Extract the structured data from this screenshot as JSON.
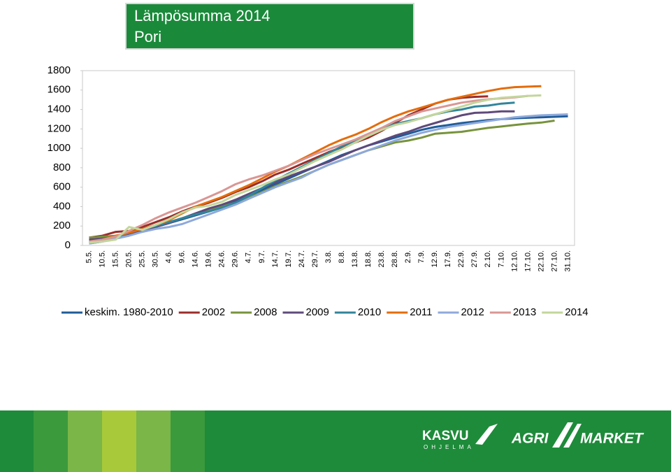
{
  "chart_data": {
    "type": "line",
    "title": "Lämpösumma 2014",
    "subtitle": "Pori",
    "categories": [
      "5.5.",
      "10.5.",
      "15.5.",
      "20.5.",
      "25.5.",
      "30.5.",
      "4.6.",
      "9.6.",
      "14.6.",
      "19.6.",
      "24.6.",
      "29.6.",
      "4.7.",
      "9.7.",
      "14.7.",
      "19.7.",
      "24.7.",
      "29.7.",
      "3.8.",
      "8.8.",
      "13.8.",
      "18.8.",
      "23.8.",
      "28.8.",
      "2.9.",
      "7.9.",
      "12.9.",
      "17.9.",
      "22.9.",
      "27.9.",
      "2.10.",
      "7.10.",
      "12.10.",
      "17.10.",
      "22.10.",
      "27.10.",
      "31.10."
    ],
    "ylim": [
      0,
      1800
    ],
    "yticks": [
      0,
      200,
      400,
      600,
      800,
      1000,
      1200,
      1400,
      1600,
      1800
    ],
    "grid": false,
    "legend": "bottom",
    "series": [
      {
        "name": "keskim. 1980-2010",
        "color": "#1f5c99",
        "values": [
          50,
          60,
          80,
          110,
          150,
          190,
          230,
          270,
          310,
          350,
          400,
          450,
          510,
          570,
          630,
          690,
          750,
          810,
          870,
          930,
          980,
          1030,
          1070,
          1110,
          1150,
          1190,
          1220,
          1240,
          1260,
          1275,
          1290,
          1300,
          1310,
          1315,
          1320,
          1325,
          1330
        ]
      },
      {
        "name": "2002",
        "color": "#9b2d2a",
        "values": [
          80,
          100,
          140,
          150,
          190,
          240,
          290,
          350,
          400,
          440,
          490,
          550,
          600,
          660,
          730,
          780,
          840,
          900,
          960,
          1010,
          1060,
          1110,
          1180,
          1260,
          1340,
          1400,
          1460,
          1500,
          1520,
          1530,
          1535,
          null,
          null,
          null,
          null,
          null,
          null
        ]
      },
      {
        "name": "2008",
        "color": "#77933c",
        "values": [
          80,
          90,
          100,
          120,
          160,
          200,
          240,
          280,
          320,
          360,
          400,
          440,
          490,
          550,
          610,
          660,
          710,
          770,
          830,
          880,
          930,
          980,
          1020,
          1060,
          1080,
          1110,
          1150,
          1160,
          1170,
          1190,
          1210,
          1225,
          1240,
          1255,
          1265,
          1285,
          null
        ]
      },
      {
        "name": "2009",
        "color": "#5f497a",
        "values": [
          60,
          70,
          90,
          120,
          160,
          190,
          230,
          280,
          330,
          380,
          420,
          470,
          530,
          590,
          650,
          710,
          760,
          810,
          860,
          920,
          980,
          1030,
          1080,
          1130,
          1170,
          1220,
          1260,
          1300,
          1340,
          1365,
          1370,
          1380,
          1380,
          null,
          null,
          null,
          null
        ]
      },
      {
        "name": "2010",
        "color": "#31859c",
        "values": [
          20,
          40,
          80,
          130,
          170,
          200,
          240,
          280,
          320,
          350,
          390,
          440,
          510,
          590,
          670,
          740,
          810,
          880,
          950,
          1020,
          1080,
          1140,
          1200,
          1250,
          1280,
          1310,
          1350,
          1380,
          1400,
          1430,
          1440,
          1460,
          1470,
          null,
          null,
          null,
          null
        ]
      },
      {
        "name": "2011",
        "color": "#e46c0a",
        "values": [
          30,
          60,
          100,
          130,
          170,
          210,
          260,
          330,
          400,
          450,
          500,
          560,
          620,
          690,
          760,
          820,
          890,
          960,
          1030,
          1090,
          1140,
          1200,
          1270,
          1330,
          1380,
          1420,
          1460,
          1500,
          1530,
          1560,
          1590,
          1615,
          1630,
          1635,
          1640,
          null,
          null
        ]
      },
      {
        "name": "2012",
        "color": "#8ea9db",
        "values": [
          20,
          40,
          70,
          100,
          140,
          170,
          190,
          220,
          270,
          320,
          370,
          420,
          480,
          540,
          600,
          650,
          700,
          770,
          830,
          880,
          930,
          980,
          1030,
          1080,
          1120,
          1160,
          1190,
          1220,
          1240,
          1260,
          1280,
          1300,
          1320,
          1330,
          1340,
          1345,
          1350
        ]
      },
      {
        "name": "2013",
        "color": "#d99694",
        "values": [
          40,
          60,
          90,
          150,
          210,
          280,
          340,
          390,
          440,
          500,
          560,
          630,
          680,
          720,
          770,
          820,
          880,
          940,
          990,
          1040,
          1090,
          1150,
          1210,
          1280,
          1330,
          1380,
          1410,
          1440,
          1470,
          1490,
          1505,
          1515,
          1525,
          1540,
          null,
          null,
          null
        ]
      },
      {
        "name": "2014",
        "color": "#c3d69b",
        "values": [
          30,
          40,
          60,
          190,
          160,
          210,
          270,
          340,
          390,
          410,
          450,
          520,
          570,
          620,
          680,
          730,
          800,
          870,
          930,
          990,
          1060,
          1130,
          1190,
          1240,
          1270,
          1310,
          1350,
          1390,
          1430,
          1470,
          1500,
          1520,
          1530,
          1540,
          1545,
          null,
          null
        ]
      }
    ]
  },
  "footer": {
    "logos": [
      "KASVU",
      "OHJELMA",
      "AGRI",
      "MARKET"
    ]
  }
}
